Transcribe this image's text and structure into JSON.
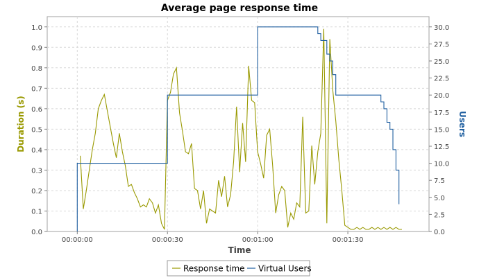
{
  "chart_data": {
    "type": "line",
    "title": "Average page response time",
    "xlabel": "Time",
    "ylabel_left": "Duration (s)",
    "ylabel_right": "Users",
    "xlim": [
      -10,
      117
    ],
    "ylim_left": [
      0,
      1.05
    ],
    "ylim_right": [
      0,
      31.5
    ],
    "x_ticks": [
      0,
      30,
      60,
      90
    ],
    "x_tick_labels": [
      "00:00:00",
      "00:00:30",
      "00:01:00",
      "00:01:30"
    ],
    "y_left_ticks": [
      0.0,
      0.1,
      0.2,
      0.3,
      0.4,
      0.5,
      0.6,
      0.7,
      0.8,
      0.9,
      1.0
    ],
    "y_left_tick_labels": [
      "0.0",
      "0.1",
      "0.2",
      "0.3",
      "0.4",
      "0.5",
      "0.6",
      "0.7",
      "0.8",
      "0.9",
      "1.0"
    ],
    "y_right_ticks": [
      0,
      2.5,
      5,
      7.5,
      10,
      12.5,
      15,
      17.5,
      20,
      22.5,
      25,
      27.5,
      30
    ],
    "y_right_tick_labels": [
      "0.0",
      "2.5",
      "5.0",
      "7.5",
      "10.0",
      "12.5",
      "15.0",
      "17.5",
      "20.0",
      "22.5",
      "25.0",
      "27.5",
      "30.0"
    ],
    "grid": true,
    "legend_position": "bottom",
    "series": [
      {
        "name": "Response time",
        "axis": "left",
        "color": "#999900",
        "x": [
          1,
          2,
          3,
          4,
          5,
          6,
          7,
          8,
          9,
          10,
          11,
          12,
          13,
          14,
          15,
          16,
          17,
          18,
          19,
          20,
          21,
          22,
          23,
          24,
          25,
          26,
          27,
          28,
          29,
          30,
          31,
          32,
          33,
          34,
          35,
          36,
          37,
          38,
          39,
          40,
          41,
          42,
          43,
          44,
          45,
          46,
          47,
          48,
          49,
          50,
          51,
          52,
          53,
          54,
          55,
          56,
          57,
          58,
          59,
          60,
          61,
          62,
          63,
          64,
          65,
          66,
          67,
          68,
          69,
          70,
          71,
          72,
          73,
          74,
          75,
          76,
          77,
          78,
          79,
          80,
          81,
          82,
          83,
          84,
          85,
          86,
          87,
          88,
          89,
          90,
          91,
          92,
          93,
          94,
          95,
          96,
          97,
          98,
          99,
          100,
          101,
          102,
          103,
          104,
          105,
          106,
          107,
          108
        ],
        "values": [
          0.37,
          0.11,
          0.2,
          0.3,
          0.4,
          0.48,
          0.6,
          0.64,
          0.67,
          0.59,
          0.51,
          0.43,
          0.36,
          0.48,
          0.39,
          0.32,
          0.22,
          0.23,
          0.19,
          0.16,
          0.12,
          0.13,
          0.12,
          0.16,
          0.14,
          0.09,
          0.13,
          0.04,
          0.01,
          0.64,
          0.68,
          0.77,
          0.8,
          0.58,
          0.49,
          0.39,
          0.38,
          0.43,
          0.21,
          0.2,
          0.11,
          0.2,
          0.04,
          0.11,
          0.1,
          0.09,
          0.25,
          0.17,
          0.27,
          0.12,
          0.18,
          0.34,
          0.61,
          0.29,
          0.53,
          0.34,
          0.81,
          0.64,
          0.63,
          0.39,
          0.33,
          0.26,
          0.47,
          0.5,
          0.32,
          0.09,
          0.18,
          0.22,
          0.2,
          0.02,
          0.09,
          0.06,
          0.14,
          0.12,
          0.56,
          0.09,
          0.1,
          0.42,
          0.23,
          0.39,
          0.48,
          0.99,
          0.04,
          0.94,
          0.69,
          0.54,
          0.35,
          0.2,
          0.03,
          0.02,
          0.01,
          0.01,
          0.02,
          0.01,
          0.02,
          0.01,
          0.01,
          0.02,
          0.01,
          0.02,
          0.01,
          0.02,
          0.01,
          0.02,
          0.01,
          0.02,
          0.01,
          0.01
        ]
      },
      {
        "name": "Virtual Users",
        "axis": "right",
        "color": "#1f5fa0",
        "step": true,
        "x": [
          0,
          0,
          30,
          30,
          60,
          60,
          80,
          80,
          81,
          81,
          83,
          83,
          84,
          84,
          85,
          85,
          86,
          86,
          101,
          101,
          102,
          102,
          103,
          103,
          104,
          104,
          105,
          105,
          106,
          106,
          107,
          107
        ],
        "values": [
          0,
          10,
          10,
          20,
          20,
          30,
          30,
          29,
          29,
          28,
          28,
          26,
          26,
          25,
          25,
          23,
          23,
          20,
          20,
          19,
          19,
          18,
          18,
          16,
          16,
          15,
          15,
          12,
          12,
          9,
          9,
          4
        ]
      }
    ]
  }
}
